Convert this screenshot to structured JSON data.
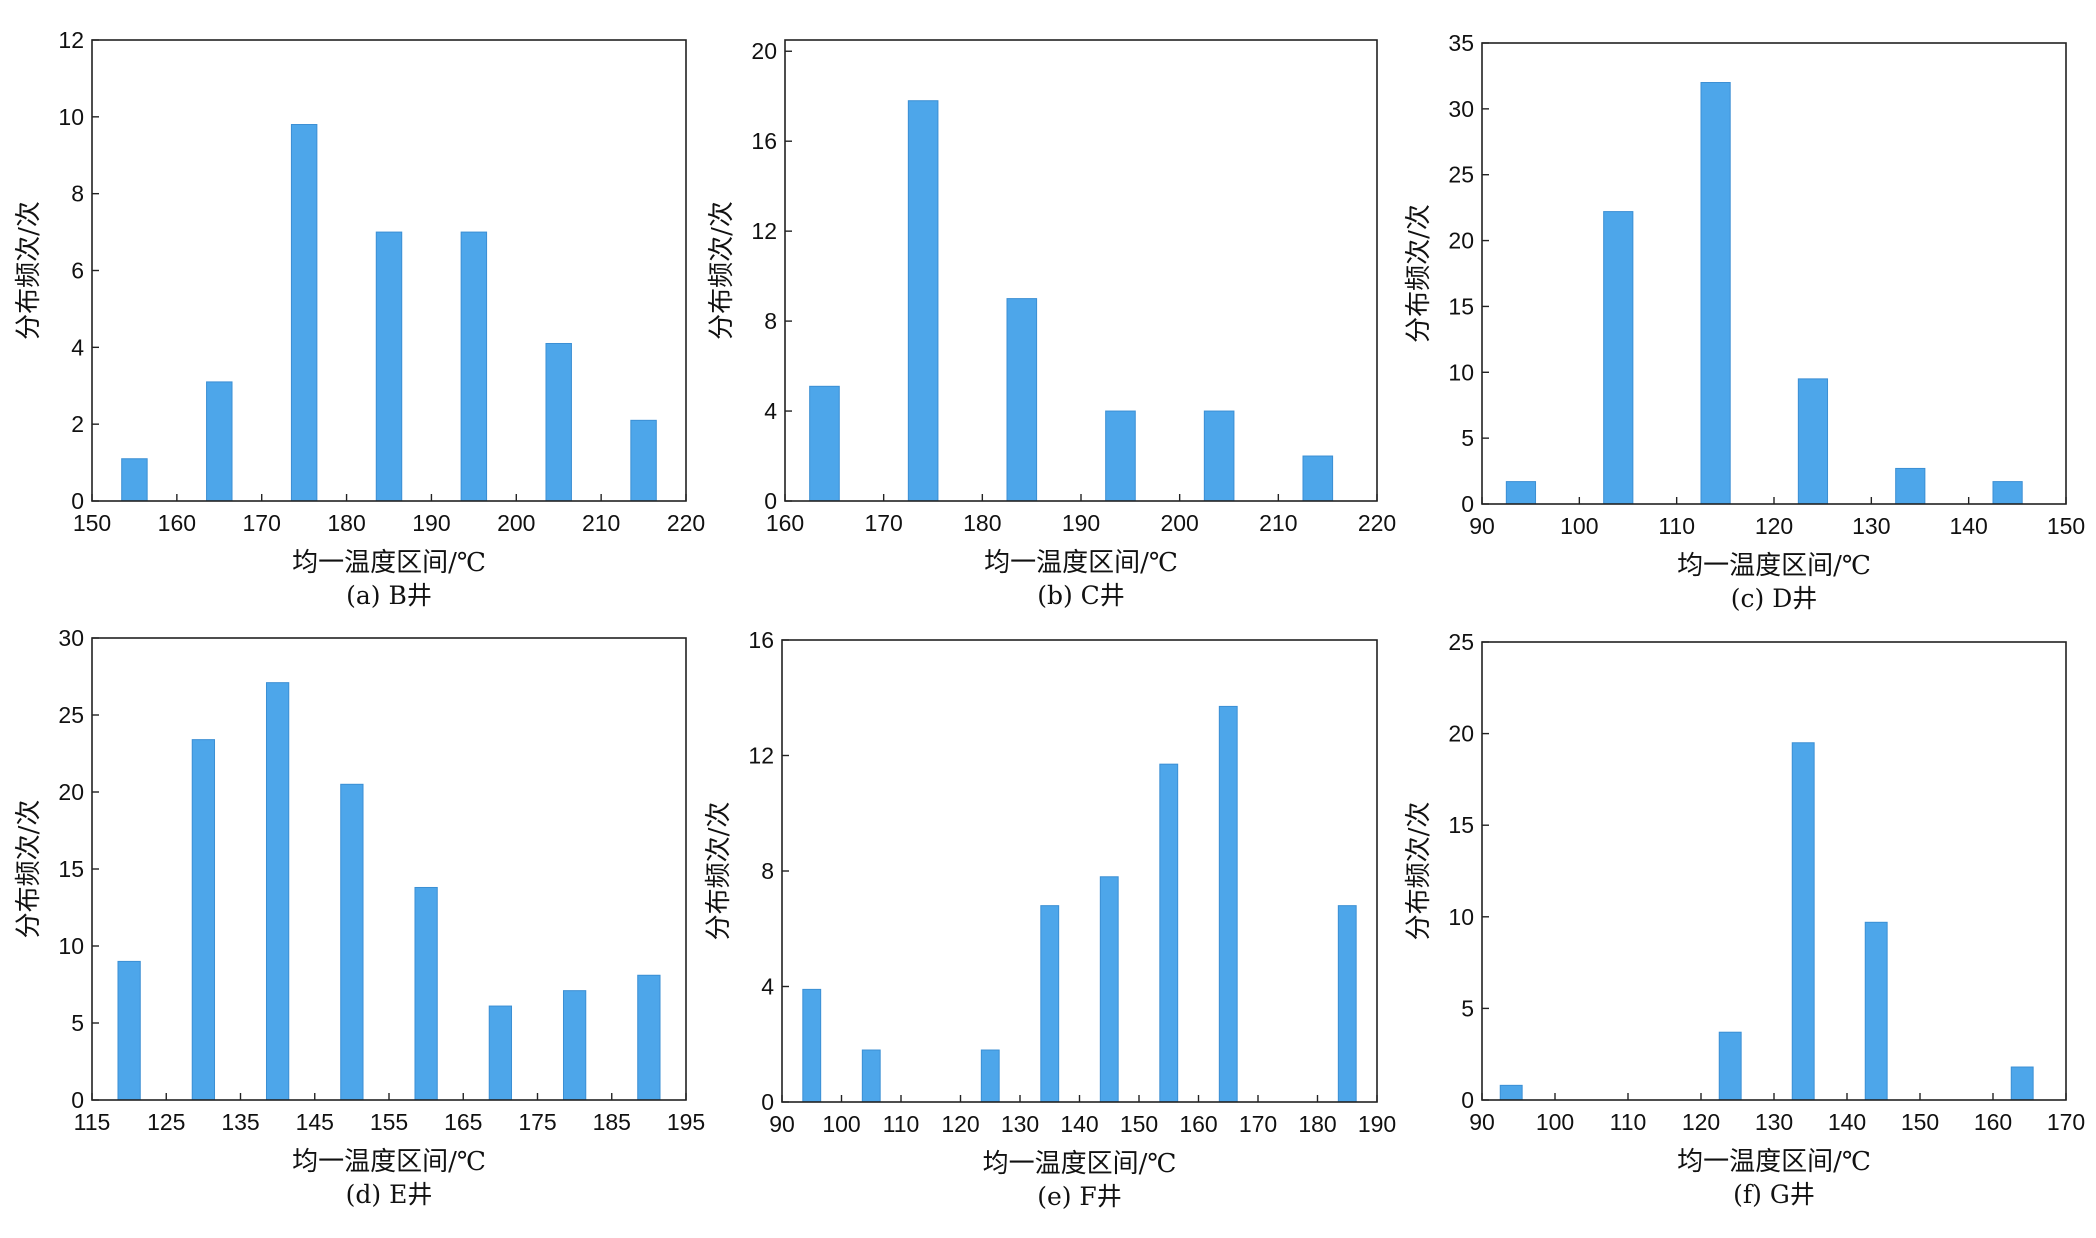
{
  "colors": {
    "bar": "#4da6ea",
    "axis": "#222222",
    "text": "#111111"
  },
  "chart_data": [
    {
      "type": "bar",
      "caption": "(a) B井",
      "xlabel": "均一温度区间/℃",
      "ylabel": "分布频次/次",
      "xlim": [
        150,
        220
      ],
      "ylim": [
        0,
        12
      ],
      "xticks": [
        150,
        160,
        170,
        180,
        190,
        200,
        210,
        220
      ],
      "yticks": [
        0,
        2,
        4,
        6,
        8,
        10,
        12
      ],
      "bar_width": 3,
      "x": [
        155,
        165,
        175,
        185,
        195,
        205,
        215
      ],
      "values": [
        1.1,
        3.1,
        9.8,
        7,
        7,
        4.1,
        2.1
      ]
    },
    {
      "type": "bar",
      "caption": "(b) C井",
      "xlabel": "均一温度区间/℃",
      "ylabel": "分布频次/次",
      "xlim": [
        160,
        220
      ],
      "ylim": [
        0,
        20.5
      ],
      "xticks": [
        160,
        170,
        180,
        190,
        200,
        210,
        220
      ],
      "yticks": [
        0,
        4,
        8,
        12,
        16,
        20
      ],
      "bar_width": 3,
      "x": [
        164,
        174,
        184,
        194,
        204,
        214
      ],
      "values": [
        5.1,
        17.8,
        9,
        4,
        4,
        2
      ]
    },
    {
      "type": "bar",
      "caption": "(c) D井",
      "xlabel": "均一温度区间/℃",
      "ylabel": "分布频次/次",
      "xlim": [
        90,
        150
      ],
      "ylim": [
        0,
        35
      ],
      "xticks": [
        90,
        100,
        110,
        120,
        130,
        140,
        150
      ],
      "yticks": [
        0,
        5,
        10,
        15,
        20,
        25,
        30,
        35
      ],
      "bar_width": 3,
      "x": [
        94,
        104,
        114,
        124,
        134,
        144
      ],
      "values": [
        1.7,
        22.2,
        32,
        9.5,
        2.7,
        1.7
      ]
    },
    {
      "type": "bar",
      "caption": "(d) E井",
      "xlabel": "均一温度区间/℃",
      "ylabel": "分布频次/次",
      "xlim": [
        115,
        195
      ],
      "ylim": [
        0,
        30
      ],
      "xticks": [
        115,
        125,
        135,
        145,
        155,
        165,
        175,
        185,
        195
      ],
      "yticks": [
        0,
        5,
        10,
        15,
        20,
        25,
        30
      ],
      "bar_width": 3,
      "x": [
        120,
        130,
        140,
        150,
        160,
        170,
        180,
        190
      ],
      "values": [
        9,
        23.4,
        27.1,
        20.5,
        13.8,
        6.1,
        7.1,
        8.1
      ]
    },
    {
      "type": "bar",
      "caption": "(e) F井",
      "xlabel": "均一温度区间/℃",
      "ylabel": "分布频次/次",
      "xlim": [
        90,
        190
      ],
      "ylim": [
        0,
        16
      ],
      "xticks": [
        90,
        100,
        110,
        120,
        130,
        140,
        150,
        160,
        170,
        180,
        190
      ],
      "yticks": [
        0,
        4,
        8,
        12,
        16
      ],
      "bar_width": 3,
      "x": [
        95,
        105,
        125,
        135,
        145,
        155,
        165,
        185
      ],
      "values": [
        3.9,
        1.8,
        1.8,
        6.8,
        7.8,
        11.7,
        13.7,
        6.8
      ]
    },
    {
      "type": "bar",
      "caption": "(f) G井",
      "xlabel": "均一温度区间/℃",
      "ylabel": "分布频次/次",
      "xlim": [
        90,
        170
      ],
      "ylim": [
        0,
        25
      ],
      "xticks": [
        90,
        100,
        110,
        120,
        130,
        140,
        150,
        160,
        170
      ],
      "yticks": [
        0,
        5,
        10,
        15,
        20,
        25
      ],
      "bar_width": 3,
      "x": [
        94,
        124,
        134,
        144,
        164
      ],
      "values": [
        0.8,
        3.7,
        19.5,
        9.7,
        1.8
      ]
    }
  ]
}
